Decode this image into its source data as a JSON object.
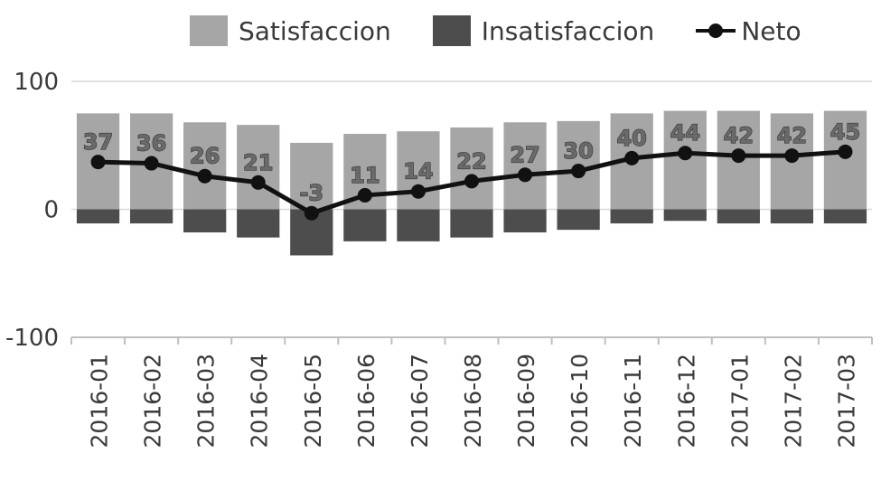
{
  "chart_data": {
    "type": "bar",
    "categories": [
      "2016-01",
      "2016-02",
      "2016-03",
      "2016-04",
      "2016-05",
      "2016-06",
      "2016-07",
      "2016-08",
      "2016-09",
      "2016-10",
      "2016-11",
      "2016-12",
      "2017-01",
      "2017-02",
      "2017-03"
    ],
    "series": [
      {
        "name": "Satisfaccion",
        "type": "bar",
        "color": "#a6a6a6",
        "values": [
          75,
          75,
          68,
          66,
          52,
          59,
          61,
          64,
          68,
          69,
          75,
          77,
          77,
          75,
          77
        ]
      },
      {
        "name": "Insatisfaccion",
        "type": "bar",
        "color": "#4d4d4d",
        "values": [
          -11,
          -11,
          -18,
          -22,
          -36,
          -25,
          -25,
          -22,
          -18,
          -16,
          -11,
          -9,
          -11,
          -11,
          -11
        ]
      },
      {
        "name": "Neto",
        "type": "line",
        "color": "#111111",
        "values": [
          37,
          36,
          26,
          21,
          -3,
          11,
          14,
          22,
          27,
          30,
          40,
          44,
          42,
          42,
          45
        ]
      }
    ],
    "data_labels": [
      "37",
      "36",
      "26",
      "21",
      "-3",
      "11",
      "14",
      "22",
      "27",
      "30",
      "40",
      "44",
      "42",
      "42",
      "45"
    ],
    "yticks": [
      "100",
      "0",
      "-100"
    ],
    "ylim": [
      -100,
      100
    ],
    "grid": "horizontal",
    "legend_position": "top"
  }
}
